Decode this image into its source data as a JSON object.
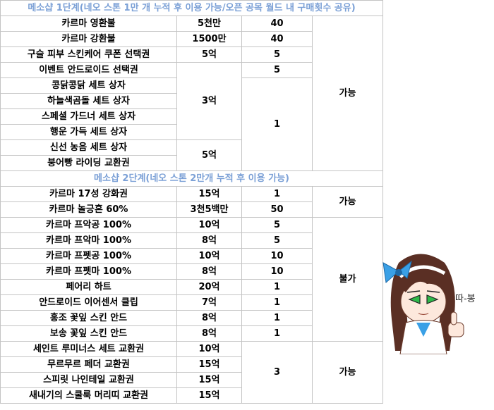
{
  "section1": {
    "title": "메소샵 1단계(네오 스톤 1만 개 누적 후 이용 가능/오픈 공목 월드 내 구매횟수 공유)",
    "rows": [
      {
        "name": "카르마 영환불",
        "price": "5천만",
        "limit": "40"
      },
      {
        "name": "카르마 강환불",
        "price": "1500만",
        "limit": "40"
      },
      {
        "name": "구슬 피부 스킨케어 쿠폰 선택권",
        "price": "5억",
        "limit": "5"
      },
      {
        "name": "이벤트 안드로이드 선택권",
        "price": "",
        "limit": "5"
      },
      {
        "name": "콩닭콩닭 세트 상자",
        "price": "",
        "limit": ""
      },
      {
        "name": "하늘색곰돌 세트 상자",
        "price": "",
        "limit": ""
      },
      {
        "name": "스페셜 가드너 세트 상자",
        "price": "",
        "limit": ""
      },
      {
        "name": "행운 가득 세트 상자",
        "price": "",
        "limit": ""
      },
      {
        "name": "신선 농음 세트 상자",
        "price": "",
        "limit": ""
      },
      {
        "name": "붕어빵 라이딩 교환권",
        "price": "",
        "limit": ""
      }
    ],
    "merged_price_a": "3억",
    "merged_price_b": "5억",
    "merged_limit": "1",
    "trade": "가능"
  },
  "section2": {
    "title": "메소샵 2단계(네오 스톤 2만개 누적 후 이용 가능)",
    "rows": [
      {
        "name": "카르마 17성 강화권",
        "price": "15억",
        "limit": "1"
      },
      {
        "name": "카르마 놀긍혼 60%",
        "price": "3천5백만",
        "limit": "50"
      },
      {
        "name": "카르마 프악공 100%",
        "price": "10억",
        "limit": "5"
      },
      {
        "name": "카르마 프악마 100%",
        "price": "8억",
        "limit": "5"
      },
      {
        "name": "카르마 프펫공 100%",
        "price": "10억",
        "limit": "10"
      },
      {
        "name": "카르마 프펫마 100%",
        "price": "8억",
        "limit": "10"
      },
      {
        "name": "페어리 하트",
        "price": "20억",
        "limit": "1"
      },
      {
        "name": "안드로이드 이어센서 클립",
        "price": "7억",
        "limit": "1"
      },
      {
        "name": "홍조 꽃잎 스킨 안드",
        "price": "8억",
        "limit": "1"
      },
      {
        "name": "보송 꽃잎 스킨 안드",
        "price": "8억",
        "limit": "1"
      },
      {
        "name": "세인트 루미너스 세트 교환권",
        "price": "10억",
        "limit": ""
      },
      {
        "name": "무르무르 페더 교환권",
        "price": "15억",
        "limit": ""
      },
      {
        "name": "스피릿 나인테일 교환권",
        "price": "15억",
        "limit": ""
      },
      {
        "name": "새내기의 스쿨룩 머리띠 교환권",
        "price": "15억",
        "limit": ""
      }
    ],
    "merged_limit": "3",
    "trade_a": "가능",
    "trade_b": "불가",
    "trade_c": "가능"
  },
  "mascot": {
    "speech": "따-봉",
    "colors": {
      "hair": "#5a2f24",
      "bow": "#3aa0e6",
      "eyes": "#2fb84a",
      "skin": "#fde8dc"
    }
  }
}
